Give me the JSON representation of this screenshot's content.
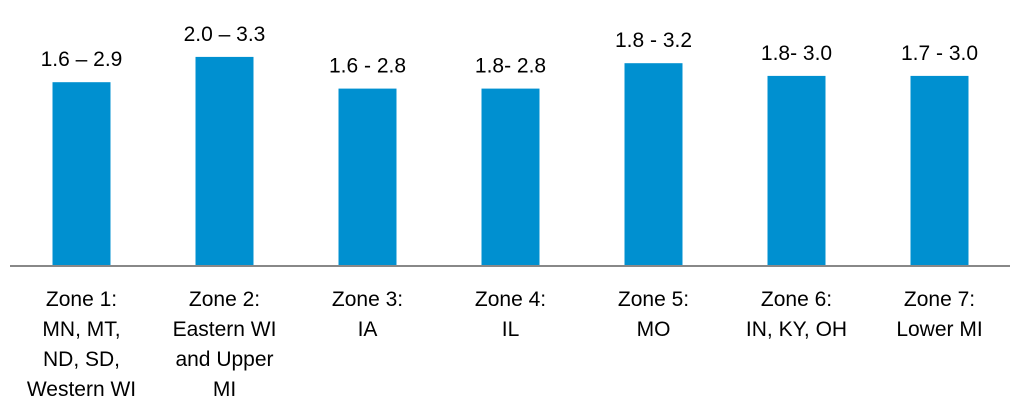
{
  "chart_data": {
    "type": "bar",
    "categories": [
      [
        "Zone 1:",
        "MN, MT,",
        "ND, SD,",
        "Western WI"
      ],
      [
        "Zone 2:",
        "Eastern WI",
        "and Upper",
        "MI"
      ],
      [
        "Zone 3:",
        "IA"
      ],
      [
        "Zone 4:",
        "IL"
      ],
      [
        "Zone 5:",
        "MO"
      ],
      [
        "Zone 6:",
        "IN, KY, OH"
      ],
      [
        "Zone 7:",
        "Lower MI"
      ]
    ],
    "data_labels": [
      "1.6 – 2.9",
      "2.0 – 3.3",
      "1.6 - 2.8",
      "1.8- 2.8",
      "1.8 - 3.2",
      "1.8- 3.0",
      "1.7 - 3.0"
    ],
    "values": [
      2.9,
      3.3,
      2.8,
      2.8,
      3.2,
      3.0,
      3.0
    ],
    "ylim": [
      0,
      3.44
    ],
    "bar_color": "#0090D0",
    "axis_color": "#888888",
    "grid": false,
    "legend": "none"
  }
}
